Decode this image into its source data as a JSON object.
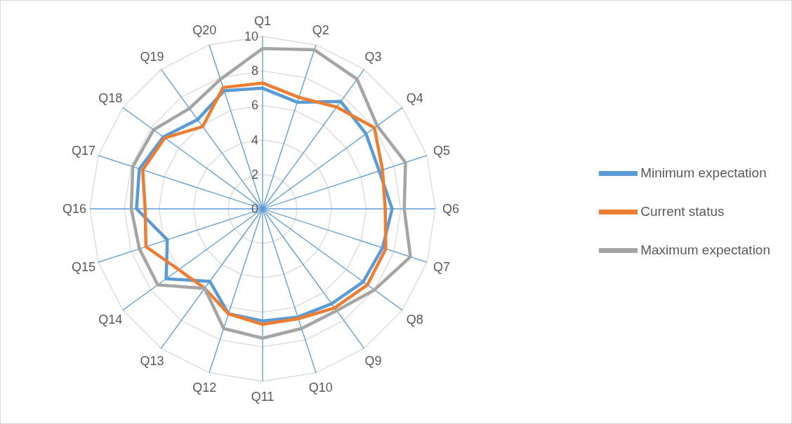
{
  "chart_data": {
    "type": "radar",
    "categories": [
      "Q1",
      "Q2",
      "Q3",
      "Q4",
      "Q5",
      "Q6",
      "Q7",
      "Q8",
      "Q9",
      "Q10",
      "Q11",
      "Q12",
      "Q13",
      "Q14",
      "Q15",
      "Q16",
      "Q17",
      "Q18",
      "Q19",
      "Q20"
    ],
    "series": [
      {
        "name": "Minimum expectation",
        "color": "#5b9bd5",
        "values": [
          7.0,
          6.5,
          7.7,
          7.4,
          7.1,
          7.5,
          7.3,
          7.2,
          6.8,
          6.6,
          6.5,
          6.4,
          5.2,
          6.9,
          5.8,
          7.3,
          7.5,
          7.1,
          6.4,
          7.2
        ]
      },
      {
        "name": "Current status",
        "color": "#ed7d31",
        "values": [
          7.3,
          6.8,
          7.3,
          8.0,
          7.3,
          7.1,
          7.5,
          7.5,
          7.1,
          6.7,
          6.7,
          6.4,
          5.7,
          6.0,
          7.1,
          6.8,
          7.3,
          7.0,
          5.9,
          7.4
        ]
      },
      {
        "name": "Maximum expectation",
        "color": "#a5a5a5",
        "values": [
          9.3,
          9.7,
          9.3,
          8.2,
          8.7,
          8.2,
          9.0,
          8.0,
          7.3,
          7.3,
          7.5,
          7.3,
          5.7,
          7.5,
          7.5,
          7.6,
          7.9,
          7.8,
          7.2,
          7.9
        ]
      }
    ],
    "ylim": [
      0,
      10
    ],
    "yticks": [
      0,
      2,
      4,
      6,
      8,
      10
    ],
    "grid": true,
    "legend": "right"
  }
}
